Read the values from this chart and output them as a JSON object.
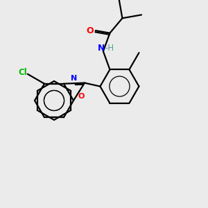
{
  "bg_color": "#ebebeb",
  "bond_color": "#000000",
  "colors": {
    "O": "#ff0000",
    "N": "#0000ff",
    "Cl": "#00bb00",
    "C": "#000000",
    "H": "#5a9a9a"
  },
  "figsize": [
    3.0,
    3.0
  ],
  "dpi": 100
}
